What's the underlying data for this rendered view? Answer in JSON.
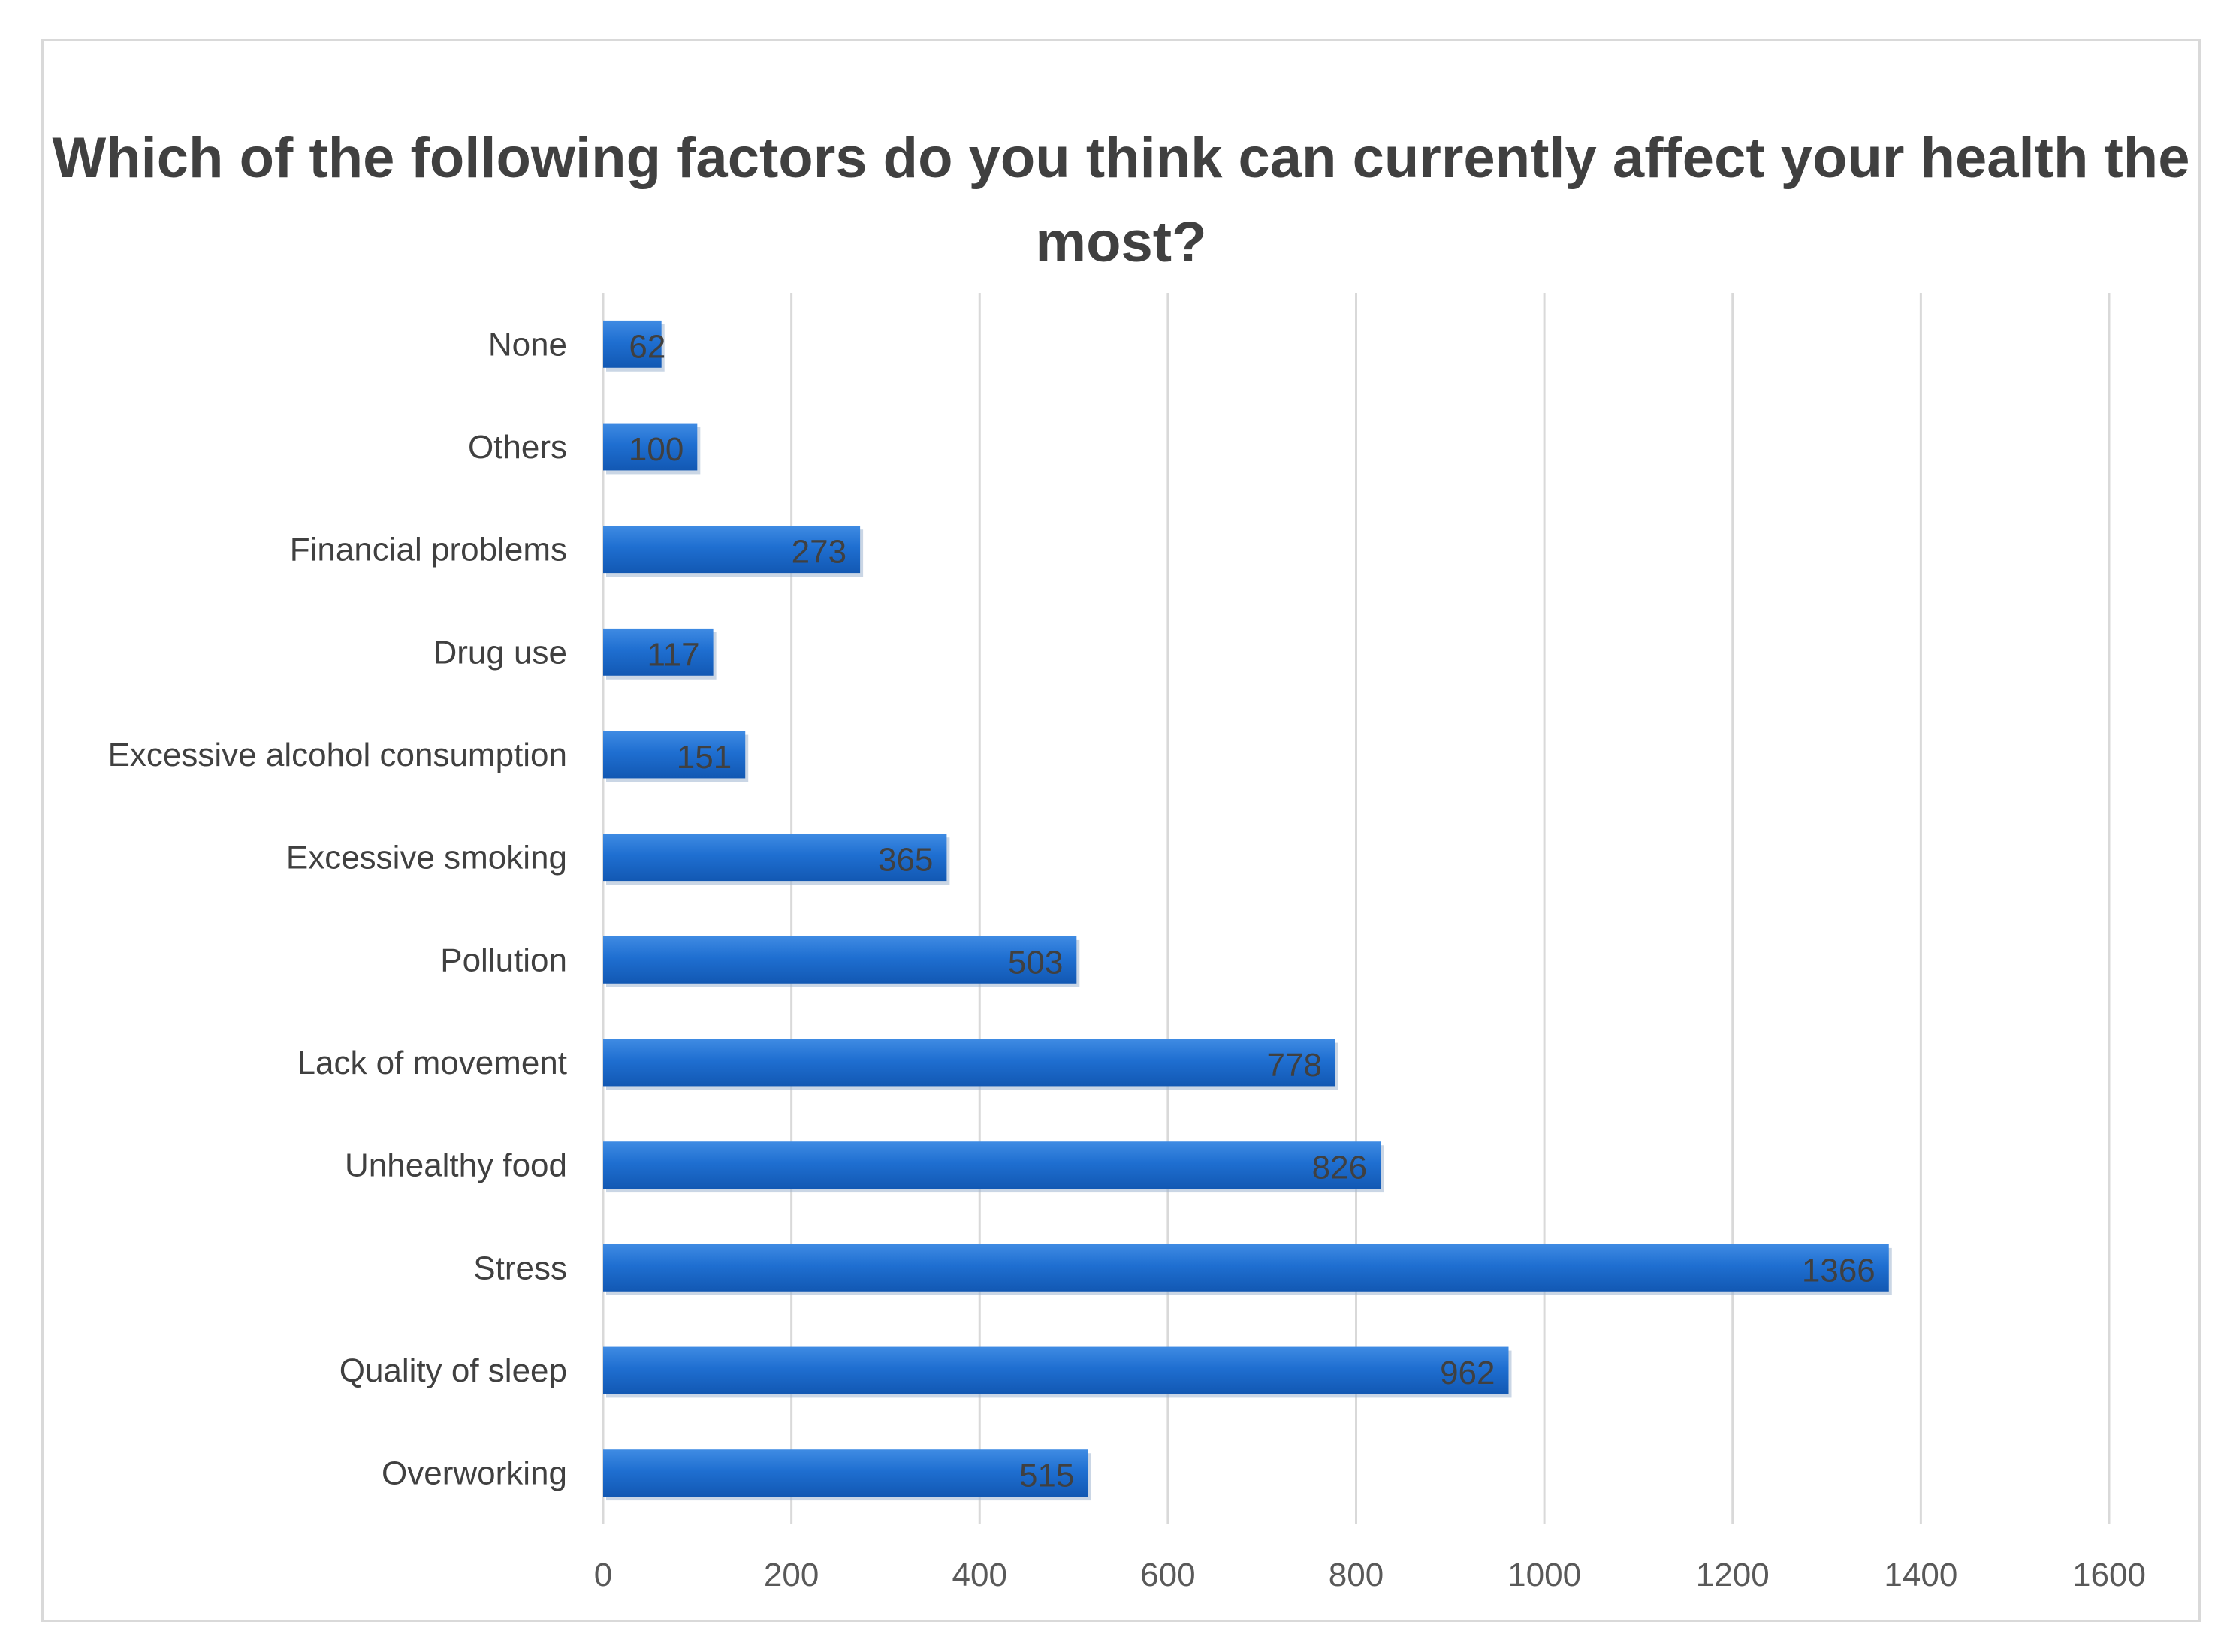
{
  "chart_data": {
    "type": "bar",
    "orientation": "horizontal",
    "title": "Which of the following factors do you think can currently affect your health the most?",
    "categories": [
      "None",
      "Others",
      "Financial problems",
      "Drug use",
      "Excessive alcohol consumption",
      "Excessive smoking",
      "Pollution",
      "Lack of movement",
      "Unhealthy food",
      "Stress",
      "Quality of sleep",
      "Overworking"
    ],
    "values": [
      62,
      100,
      273,
      117,
      151,
      365,
      503,
      778,
      826,
      1366,
      962,
      515
    ],
    "data_labels": [
      "62",
      "100",
      "273",
      "117",
      "151",
      "365",
      "503",
      "778",
      "826",
      "1366",
      "962",
      "515"
    ],
    "xlim": [
      0,
      1600
    ],
    "xticks": [
      0,
      200,
      400,
      600,
      800,
      1000,
      1200,
      1400,
      1600
    ],
    "xtick_labels": [
      "0",
      "200",
      "400",
      "600",
      "800",
      "1000",
      "1200",
      "1400",
      "1600"
    ],
    "xlabel": "",
    "ylabel": "",
    "grid": "vertical",
    "legend": "none",
    "bar_color": "#1f6fd1"
  }
}
